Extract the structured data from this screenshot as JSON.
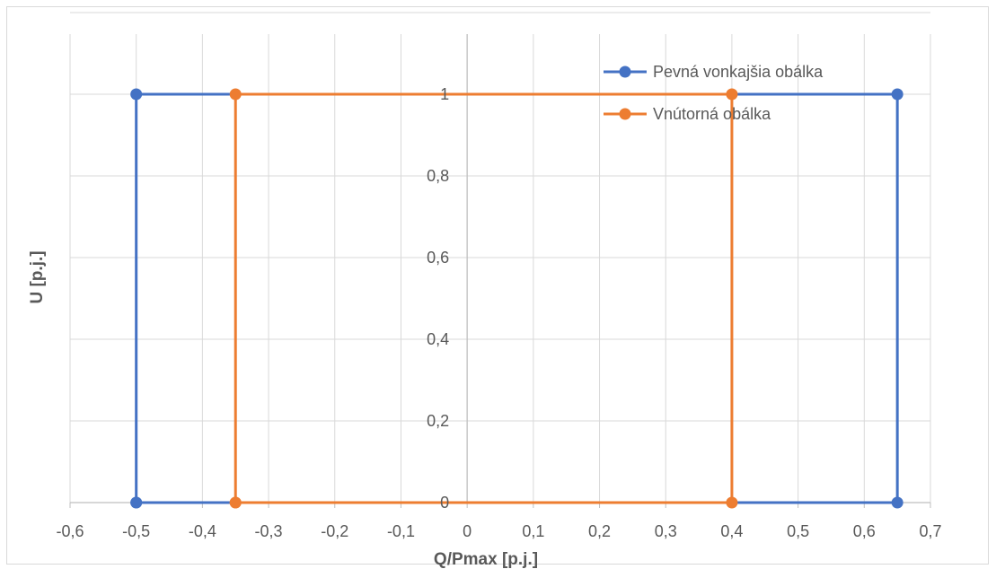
{
  "chart_data": {
    "type": "line",
    "title": "",
    "xlabel": "Q/Pmax [p.j.]",
    "ylabel": "U [p.j.]",
    "xlim": [
      -0.6,
      0.7
    ],
    "ylim": [
      0,
      1.2
    ],
    "x_ticks": [
      -0.6,
      -0.5,
      -0.4,
      -0.3,
      -0.2,
      -0.1,
      0,
      0.1,
      0.2,
      0.3,
      0.4,
      0.5,
      0.6,
      0.7
    ],
    "x_tick_labels": [
      "-0,6",
      "-0,5",
      "-0,4",
      "-0,3",
      "-0,2",
      "-0,1",
      "0",
      "0,1",
      "0,2",
      "0,3",
      "0,4",
      "0,5",
      "0,6",
      "0,7"
    ],
    "y_ticks": [
      0,
      0.2,
      0.4,
      0.6,
      0.8,
      1
    ],
    "y_tick_labels": [
      "0",
      "0,2",
      "0,4",
      "0,6",
      "0,8",
      "1"
    ],
    "grid": true,
    "legend_position": "top-right",
    "series": [
      {
        "name": "Pevná vonkajšia obálka",
        "color": "#4472c4",
        "points": [
          {
            "x": -0.5,
            "y": 0
          },
          {
            "x": -0.5,
            "y": 1
          },
          {
            "x": 0.65,
            "y": 1
          },
          {
            "x": 0.65,
            "y": 0
          },
          {
            "x": -0.5,
            "y": 0
          }
        ]
      },
      {
        "name": "Vnútorná obálka",
        "color": "#ed7d31",
        "points": [
          {
            "x": -0.35,
            "y": 0
          },
          {
            "x": -0.35,
            "y": 1
          },
          {
            "x": 0.4,
            "y": 1
          },
          {
            "x": 0.4,
            "y": 0
          },
          {
            "x": -0.35,
            "y": 0
          }
        ]
      }
    ]
  }
}
